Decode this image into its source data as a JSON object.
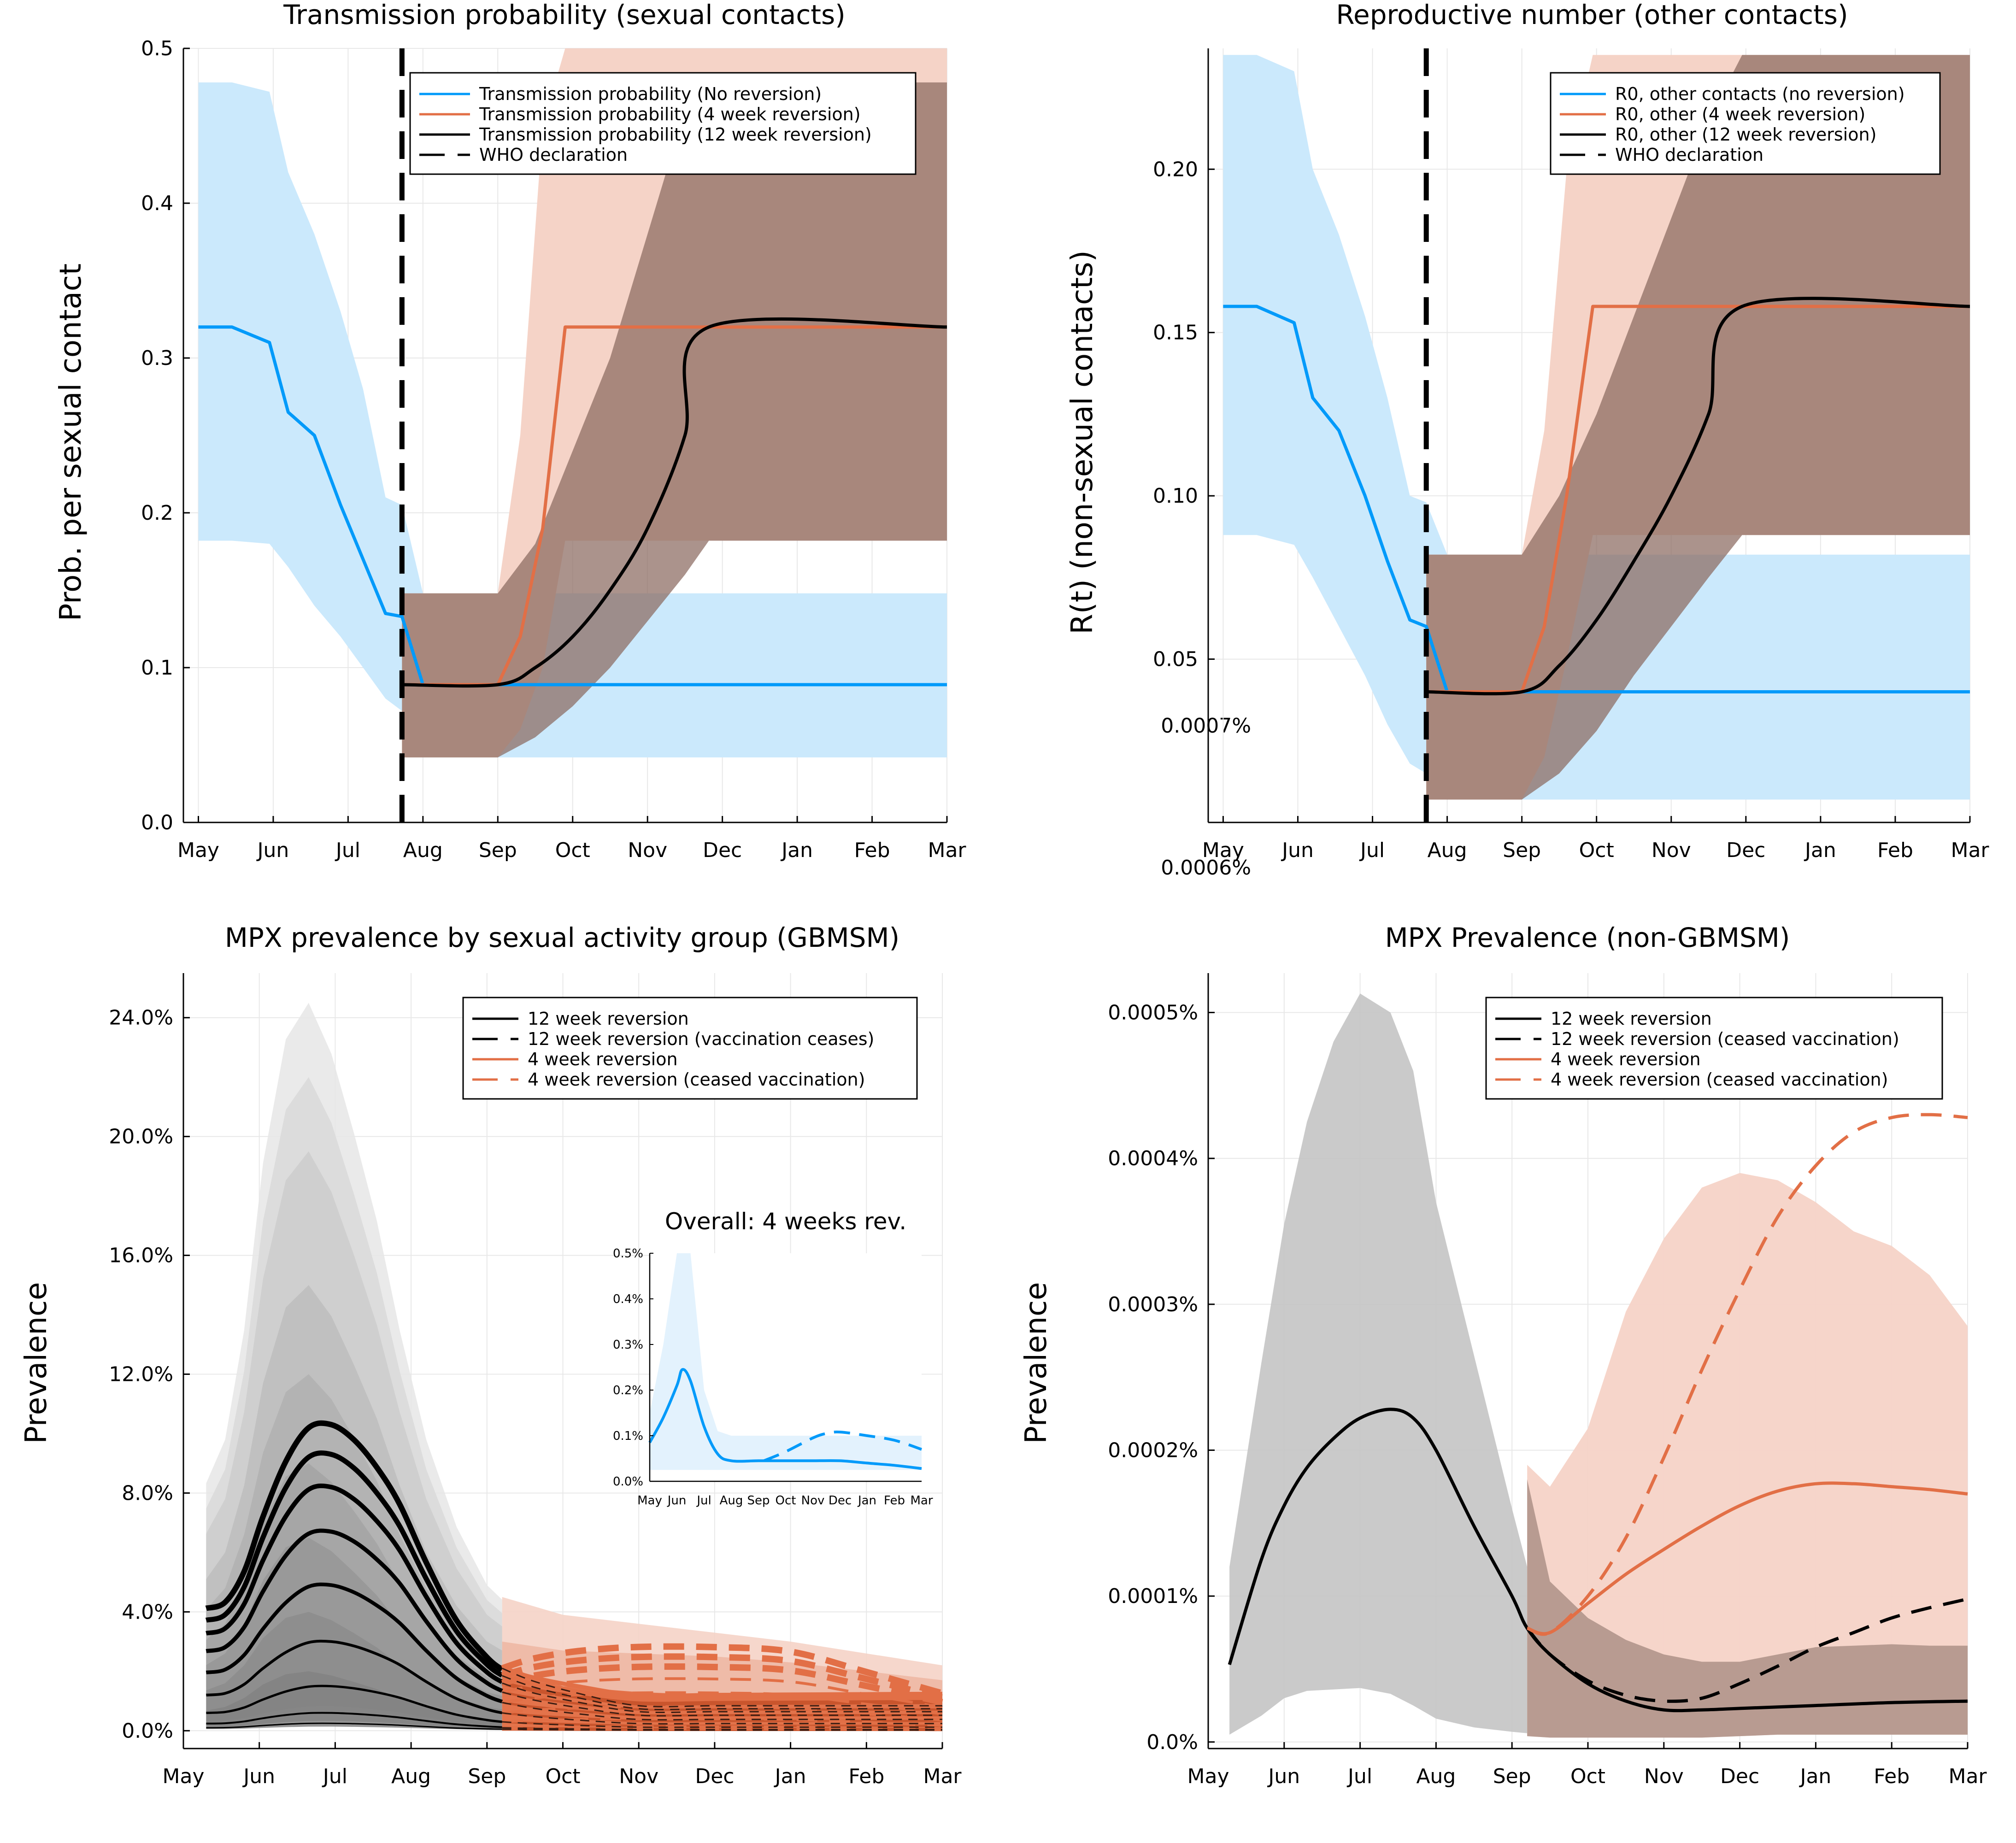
{
  "months": [
    "May",
    "Jun",
    "Jul",
    "Aug",
    "Sep",
    "Oct",
    "Nov",
    "Dec",
    "Jan",
    "Feb",
    "Mar"
  ],
  "colors": {
    "blue": "#009AFA",
    "blue_band": "#CBE9FC",
    "orange": "#E26F46",
    "orange_band": "#F5D3C7",
    "brown_band": "#A89086",
    "grey_band": "#B5B5B5",
    "black": "#000000"
  },
  "panels": {
    "tl": {
      "title": "Transmission probability (sexual contacts)",
      "ylabel": "Prob. per sexual contact",
      "yticks": [
        {
          "v": 0.0,
          "t": "0.0"
        },
        {
          "v": 0.1,
          "t": "0.1"
        },
        {
          "v": 0.2,
          "t": "0.2"
        },
        {
          "v": 0.3,
          "t": "0.3"
        },
        {
          "v": 0.4,
          "t": "0.4"
        },
        {
          "v": 0.5,
          "t": "0.5"
        }
      ],
      "legend": [
        "Transmission probability (No reversion)",
        "Transmission probability (4 week reversion)",
        "Transmission probability (12 week reversion)",
        "WHO declaration"
      ]
    },
    "tr": {
      "title": "Reproductive number (other contacts)",
      "ylabel": "R(t) (non-sexual contacts)",
      "yticks": [
        {
          "v": 0.05,
          "t": "0.05"
        },
        {
          "v": 0.1,
          "t": "0.10"
        },
        {
          "v": 0.15,
          "t": "0.15"
        },
        {
          "v": 0.2,
          "t": "0.20"
        }
      ],
      "stray_ticks": [
        "0.0007%",
        "0.0006%"
      ],
      "legend": [
        "R0, other contacts (no reversion)",
        "R0, other (4 week reversion)",
        "R0, other (12 week reversion)",
        "WHO declaration"
      ]
    },
    "bl": {
      "title": "MPX prevalence by sexual activity group (GBMSM)",
      "ylabel": "Prevalence",
      "yticks": [
        {
          "v": 0,
          "t": "0.0%"
        },
        {
          "v": 4,
          "t": "4.0%"
        },
        {
          "v": 8,
          "t": "8.0%"
        },
        {
          "v": 12,
          "t": "12.0%"
        },
        {
          "v": 16,
          "t": "16.0%"
        },
        {
          "v": 20,
          "t": "20.0%"
        },
        {
          "v": 24,
          "t": "24.0%"
        }
      ],
      "legend": [
        "12 week reversion",
        "12 week reversion (vaccination ceases)",
        "4 week reversion",
        "4 week reversion (ceased vaccination)"
      ],
      "inset": {
        "title": "Overall: 4 weeks rev.",
        "yticks": [
          "0.0%",
          "0.1%",
          "0.2%",
          "0.3%",
          "0.4%",
          "0.5%"
        ]
      }
    },
    "br": {
      "title": "MPX Prevalence (non-GBMSM)",
      "ylabel": "Prevalence",
      "yticks": [
        {
          "v": 0,
          "t": "0.0%"
        },
        {
          "v": 0.0001,
          "t": "0.0001%"
        },
        {
          "v": 0.0002,
          "t": "0.0002%"
        },
        {
          "v": 0.0003,
          "t": "0.0003%"
        },
        {
          "v": 0.0004,
          "t": "0.0004%"
        },
        {
          "v": 0.0005,
          "t": "0.0005%"
        }
      ],
      "legend": [
        "12 week reversion",
        "12 week reversion (ceased vaccination)",
        "4 week reversion",
        "4 week reversion (ceased vaccination)"
      ]
    }
  },
  "chart_data": [
    {
      "type": "line",
      "title": "Transmission probability (sexual contacts)",
      "ylabel": "Prob. per sexual contact",
      "x_unit": "month index (0 = May, 10 = Mar)",
      "xlim": [
        -0.2,
        10.0
      ],
      "ylim": [
        0.0,
        0.5
      ],
      "vline": {
        "name": "WHO declaration",
        "x": 2.72
      },
      "series": [
        {
          "name": "Transmission probability (No reversion)",
          "color": "#009AFA",
          "x": [
            0,
            0.45,
            0.95,
            1.2,
            1.55,
            1.9,
            2.2,
            2.5,
            2.72,
            3,
            5,
            8,
            10
          ],
          "y": [
            0.32,
            0.32,
            0.31,
            0.265,
            0.25,
            0.205,
            0.17,
            0.135,
            0.133,
            0.089,
            0.089,
            0.089,
            0.089
          ],
          "lo": [
            0.182,
            0.182,
            0.18,
            0.165,
            0.14,
            0.12,
            0.1,
            0.08,
            0.072,
            0.042,
            0.042,
            0.042,
            0.042
          ],
          "hi": [
            0.478,
            0.478,
            0.472,
            0.42,
            0.38,
            0.33,
            0.28,
            0.21,
            0.205,
            0.148,
            0.148,
            0.148,
            0.148
          ]
        },
        {
          "name": "Transmission probability (4 week reversion)",
          "color": "#E26F46",
          "x": [
            2.72,
            4.0,
            4.3,
            4.6,
            4.9,
            10
          ],
          "y": [
            0.089,
            0.089,
            0.12,
            0.19,
            0.32,
            0.32
          ],
          "lo": [
            0.042,
            0.042,
            0.06,
            0.1,
            0.182,
            0.182
          ],
          "hi": [
            0.148,
            0.148,
            0.25,
            0.45,
            0.5,
            0.5
          ]
        },
        {
          "name": "Transmission probability (12 week reversion)",
          "color": "#000000",
          "x": [
            2.72,
            4.0,
            4.5,
            5.0,
            5.5,
            6.0,
            6.5,
            6.82,
            10
          ],
          "y": [
            0.089,
            0.089,
            0.1,
            0.12,
            0.15,
            0.19,
            0.25,
            0.32,
            0.32
          ],
          "lo": [
            0.042,
            0.042,
            0.055,
            0.075,
            0.1,
            0.13,
            0.16,
            0.182,
            0.182
          ],
          "hi": [
            0.148,
            0.148,
            0.18,
            0.24,
            0.3,
            0.38,
            0.46,
            0.478,
            0.478
          ]
        }
      ]
    },
    {
      "type": "line",
      "title": "Reproductive number (other contacts)",
      "ylabel": "R(t) (non-sexual contacts)",
      "x_unit": "month index (0 = May, 10 = Mar)",
      "xlim": [
        -0.2,
        10.0
      ],
      "ylim": [
        0.0,
        0.237
      ],
      "vline": {
        "name": "WHO declaration",
        "x": 2.72
      },
      "series": [
        {
          "name": "R0, other contacts (no reversion)",
          "color": "#009AFA",
          "x": [
            0,
            0.45,
            0.95,
            1.2,
            1.55,
            1.9,
            2.2,
            2.5,
            2.72,
            3,
            5,
            8,
            10
          ],
          "y": [
            0.158,
            0.158,
            0.153,
            0.13,
            0.12,
            0.1,
            0.08,
            0.062,
            0.06,
            0.04,
            0.04,
            0.04,
            0.04
          ],
          "lo": [
            0.088,
            0.088,
            0.085,
            0.075,
            0.06,
            0.045,
            0.03,
            0.018,
            0.015,
            0.007,
            0.007,
            0.007,
            0.007
          ],
          "hi": [
            0.235,
            0.235,
            0.23,
            0.2,
            0.18,
            0.155,
            0.13,
            0.1,
            0.098,
            0.082,
            0.082,
            0.082,
            0.082
          ]
        },
        {
          "name": "R0, other (4 week reversion)",
          "color": "#E26F46",
          "x": [
            2.72,
            4.0,
            4.3,
            4.6,
            4.95,
            10
          ],
          "y": [
            0.04,
            0.04,
            0.06,
            0.1,
            0.158,
            0.158
          ],
          "lo": [
            0.007,
            0.007,
            0.02,
            0.05,
            0.088,
            0.088
          ],
          "hi": [
            0.082,
            0.082,
            0.12,
            0.2,
            0.235,
            0.235
          ]
        },
        {
          "name": "R0, other (12 week reversion)",
          "color": "#000000",
          "x": [
            2.72,
            4.0,
            4.5,
            5.0,
            5.5,
            6.0,
            6.5,
            6.95,
            10
          ],
          "y": [
            0.04,
            0.04,
            0.048,
            0.062,
            0.08,
            0.1,
            0.125,
            0.158,
            0.158
          ],
          "lo": [
            0.007,
            0.007,
            0.015,
            0.028,
            0.045,
            0.06,
            0.075,
            0.088,
            0.088
          ],
          "hi": [
            0.082,
            0.082,
            0.1,
            0.125,
            0.155,
            0.185,
            0.215,
            0.235,
            0.235
          ]
        }
      ]
    },
    {
      "type": "line",
      "title": "MPX prevalence by sexual activity group (GBMSM)",
      "ylabel": "Prevalence",
      "x_unit": "month index (0 = May, 10 = Mar)",
      "xlim": [
        0.0,
        10.0
      ],
      "ylim": [
        -0.6,
        25.5
      ],
      "group_peaks": [
        10.3,
        9.3,
        8.2,
        6.7,
        4.9,
        3.0,
        1.5,
        0.6,
        0.25
      ],
      "group_bands_hi": [
        24.5,
        22.0,
        19.5,
        15.0,
        12.0,
        9.0,
        6.5,
        4.0,
        2.0
      ],
      "series": [
        {
          "name": "12 week reversion",
          "color": "#000000",
          "x": [
            0.3,
            4.2
          ],
          "note": "nine sexual-activity groups, peaks listed in group_peaks"
        },
        {
          "name": "12 week reversion (vaccination ceases)",
          "color": "#000000",
          "dashed": true,
          "x": [
            4.2,
            10.0
          ]
        },
        {
          "name": "4 week reversion",
          "color": "#E26F46",
          "x": [
            4.2,
            10.0
          ]
        },
        {
          "name": "4 week reversion (ceased vaccination)",
          "color": "#E26F46",
          "dashed": true,
          "x": [
            4.2,
            10.0
          ]
        }
      ],
      "inset": {
        "title": "Overall: 4 weeks rev.",
        "ylim": [
          0,
          0.5
        ],
        "solid": {
          "x": [
            0,
            0.5,
            1.0,
            1.2,
            1.5,
            2.0,
            2.5,
            3.0,
            4,
            5,
            6,
            7,
            8,
            9,
            10
          ],
          "y": [
            0.085,
            0.14,
            0.21,
            0.245,
            0.22,
            0.12,
            0.06,
            0.045,
            0.045,
            0.045,
            0.045,
            0.045,
            0.04,
            0.035,
            0.028
          ]
        },
        "dashed": {
          "x": [
            4.2,
            5,
            6,
            6.5,
            7,
            8,
            9,
            10
          ],
          "y": [
            0.045,
            0.065,
            0.095,
            0.105,
            0.108,
            0.1,
            0.09,
            0.07
          ]
        },
        "band_lo": 0.025,
        "band_hi_peak": 0.5
      }
    },
    {
      "type": "line",
      "title": "MPX Prevalence (non-GBMSM)",
      "ylabel": "Prevalence",
      "x_unit": "month index (0 = May, 10 = Mar)",
      "xlim": [
        0.0,
        10.0
      ],
      "ylim": [
        -4.5e-06,
        0.000527
      ],
      "series": [
        {
          "name": "12 week reversion",
          "color": "#000000",
          "x": [
            0.28,
            0.7,
            1.0,
            1.3,
            1.65,
            2.0,
            2.4,
            2.7,
            3.0,
            3.5,
            4.0,
            4.2,
            4.5,
            5.0,
            5.5,
            6.0,
            6.5,
            7.0,
            8.0,
            9.0,
            10.0
          ],
          "y": [
            5.3e-05,
            0.000125,
            0.000162,
            0.000188,
            0.000208,
            0.000222,
            0.000228,
            0.000222,
            0.0002,
            0.000148,
            0.0001,
            7.8e-05,
            6e-05,
            4e-05,
            2.8e-05,
            2.2e-05,
            2.2e-05,
            2.3e-05,
            2.5e-05,
            2.7e-05,
            2.8e-05
          ]
        },
        {
          "name": "12 week reversion (ceased vaccination)",
          "color": "#000000",
          "dashed": true,
          "x": [
            4.2,
            4.5,
            5.0,
            5.5,
            6.0,
            6.5,
            7.0,
            7.5,
            8.0,
            8.5,
            9.0,
            9.5,
            10.0
          ],
          "y": [
            7.8e-05,
            6e-05,
            4.2e-05,
            3.2e-05,
            2.8e-05,
            3e-05,
            4e-05,
            5.2e-05,
            6.5e-05,
            7.5e-05,
            8.5e-05,
            9.2e-05,
            9.8e-05
          ]
        },
        {
          "name": "4 week reversion",
          "color": "#E26F46",
          "x": [
            4.2,
            4.5,
            5.0,
            5.5,
            6.0,
            6.5,
            7.0,
            7.5,
            8.0,
            8.5,
            9.0,
            9.5,
            10.0
          ],
          "y": [
            7.8e-05,
            7.5e-05,
            9.5e-05,
            0.000115,
            0.000132,
            0.000148,
            0.000162,
            0.000172,
            0.000177,
            0.000177,
            0.000175,
            0.000173,
            0.00017
          ]
        },
        {
          "name": "4 week reversion (ceased vaccination)",
          "color": "#E26F46",
          "dashed": true,
          "x": [
            4.2,
            4.5,
            5.0,
            5.5,
            6.0,
            6.5,
            7.0,
            7.5,
            8.0,
            8.5,
            9.0,
            9.5,
            10.0
          ],
          "y": [
            7.8e-05,
            7.5e-05,
            0.0001,
            0.00014,
            0.000195,
            0.000255,
            0.00031,
            0.00036,
            0.000395,
            0.000418,
            0.000428,
            0.00043,
            0.000428
          ]
        }
      ],
      "bands": {
        "grey_x": [
          0.28,
          0.7,
          1.0,
          1.3,
          1.65,
          2.0,
          2.4,
          2.7,
          3.0,
          3.5,
          4.0,
          4.2
        ],
        "grey_lo": [
          5e-06,
          1.8e-05,
          3e-05,
          3.5e-05,
          3.6e-05,
          3.7e-05,
          3.3e-05,
          2.5e-05,
          1.6e-05,
          1e-05,
          7e-06,
          6e-06
        ],
        "grey_hi": [
          0.00012,
          0.00026,
          0.000355,
          0.000425,
          0.00048,
          0.000513,
          0.0005,
          0.00046,
          0.00037,
          0.000265,
          0.00016,
          0.00012
        ],
        "orange_x": [
          4.2,
          4.5,
          5.0,
          5.5,
          6.0,
          6.5,
          7.0,
          7.5,
          8.0,
          8.5,
          9.0,
          9.5,
          10.0
        ],
        "orange_lo": [
          4e-06,
          3e-06,
          3e-06,
          3e-06,
          3e-06,
          3e-06,
          4e-06,
          5e-06,
          5e-06,
          5e-06,
          5e-06,
          5e-06,
          5e-06
        ],
        "orange_hi": [
          0.00019,
          0.000175,
          0.000215,
          0.000295,
          0.000345,
          0.00038,
          0.00039,
          0.000385,
          0.00037,
          0.00035,
          0.00034,
          0.00032,
          0.000285
        ],
        "brown_hi": [
          0.00018,
          0.00011,
          8.5e-05,
          7e-05,
          6e-05,
          5.5e-05,
          5.5e-05,
          6e-05,
          6.5e-05,
          6.6e-05,
          6.7e-05,
          6.6e-05,
          6.6e-05
        ]
      }
    }
  ]
}
